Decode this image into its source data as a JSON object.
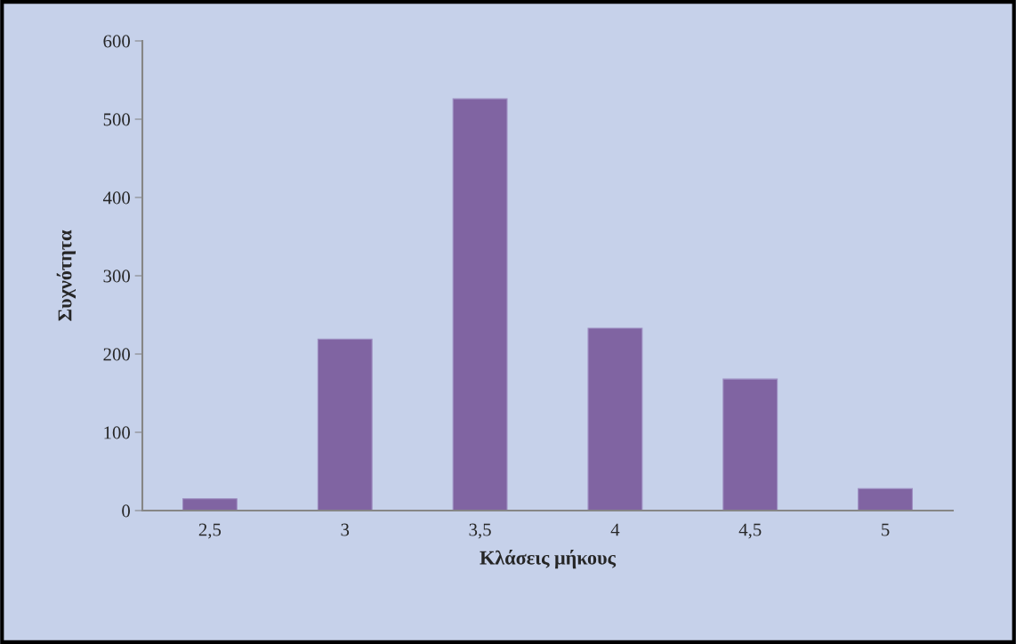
{
  "chart_data": {
    "type": "bar",
    "xlabel": "Κλάσεις μήκους",
    "ylabel": "Συχνότητα",
    "categories": [
      "2,5",
      "3",
      "3,5",
      "4",
      "4,5",
      "5"
    ],
    "values": [
      15,
      219,
      526,
      233,
      168,
      28
    ],
    "color": "#8064a2",
    "ylim": [
      0,
      600
    ],
    "yticks": [
      0,
      100,
      200,
      300,
      400,
      500,
      600
    ],
    "grid": false,
    "legend": false
  }
}
